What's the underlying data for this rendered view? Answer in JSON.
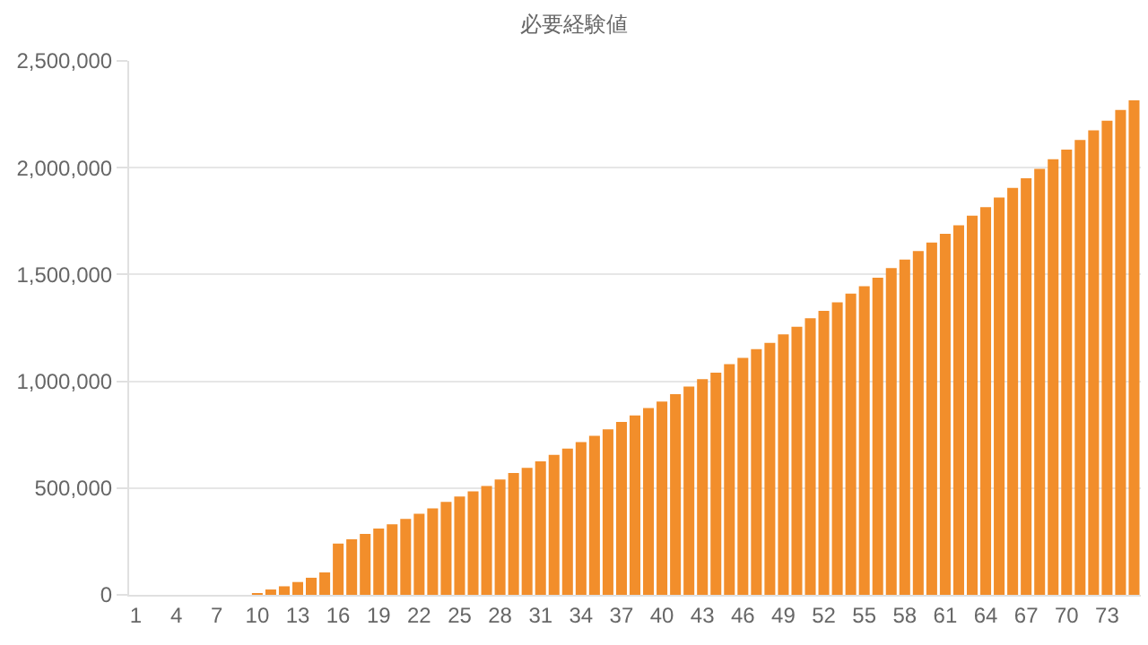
{
  "chart_data": {
    "type": "bar",
    "title": "必要経験値",
    "categories": [
      "1",
      null,
      null,
      "4",
      null,
      null,
      "7",
      null,
      null,
      "10",
      null,
      null,
      "13",
      null,
      null,
      "16",
      null,
      null,
      "19",
      null,
      null,
      "22",
      null,
      null,
      "25",
      null,
      null,
      "28",
      null,
      null,
      "31",
      null,
      null,
      "34",
      null,
      null,
      "37",
      null,
      null,
      "40",
      null,
      null,
      "43",
      null,
      null,
      "46",
      null,
      null,
      "49",
      null,
      null,
      "52",
      null,
      null,
      "55",
      null,
      null,
      "58",
      null,
      null,
      "61",
      null,
      null,
      "64",
      null,
      null,
      "67",
      null,
      null,
      "70",
      null,
      null,
      "73",
      null,
      null
    ],
    "values": [
      0,
      0,
      0,
      0,
      0,
      0,
      0,
      0,
      0,
      5000,
      25000,
      40000,
      60000,
      80000,
      105000,
      240000,
      260000,
      285000,
      310000,
      330000,
      355000,
      380000,
      405000,
      435000,
      460000,
      485000,
      510000,
      540000,
      570000,
      595000,
      625000,
      655000,
      685000,
      715000,
      745000,
      775000,
      810000,
      840000,
      875000,
      905000,
      940000,
      975000,
      1010000,
      1040000,
      1080000,
      1110000,
      1150000,
      1180000,
      1220000,
      1255000,
      1295000,
      1330000,
      1370000,
      1410000,
      1445000,
      1485000,
      1530000,
      1570000,
      1610000,
      1650000,
      1690000,
      1730000,
      1775000,
      1815000,
      1860000,
      1905000,
      1950000,
      1995000,
      2040000,
      2085000,
      2130000,
      2175000,
      2220000,
      2270000,
      2315000
    ],
    "color": "#f28e2b",
    "ylim": [
      0,
      2500000
    ],
    "yticks": [
      0,
      {
        "value": 500000,
        "label": "500,000"
      },
      {
        "value": 1000000,
        "label": "1,000,000"
      },
      {
        "value": 1500000,
        "label": "1,500,000"
      },
      {
        "value": 2000000,
        "label": "2,000,000"
      },
      {
        "value": 2500000,
        "label": "2,500,000"
      }
    ],
    "grid": "y"
  }
}
